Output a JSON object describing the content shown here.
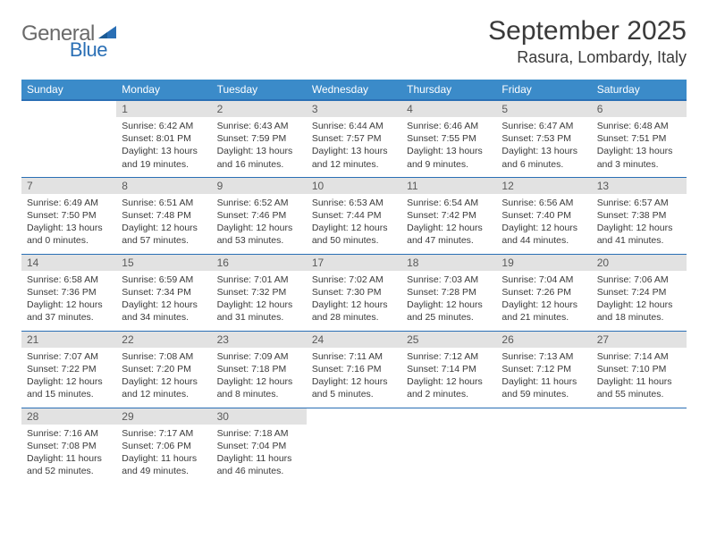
{
  "logo": {
    "part1": "General",
    "part2": "Blue"
  },
  "title": "September 2025",
  "location": "Rasura, Lombardy, Italy",
  "colors": {
    "header_bg": "#3b8bc9",
    "accent": "#2a6fb5",
    "daynum_bg": "#e2e2e2",
    "text": "#3a3a3a"
  },
  "weekdays": [
    "Sunday",
    "Monday",
    "Tuesday",
    "Wednesday",
    "Thursday",
    "Friday",
    "Saturday"
  ],
  "weeks": [
    [
      null,
      {
        "n": "1",
        "sr": "6:42 AM",
        "ss": "8:01 PM",
        "dl": "13 hours and 19 minutes."
      },
      {
        "n": "2",
        "sr": "6:43 AM",
        "ss": "7:59 PM",
        "dl": "13 hours and 16 minutes."
      },
      {
        "n": "3",
        "sr": "6:44 AM",
        "ss": "7:57 PM",
        "dl": "13 hours and 12 minutes."
      },
      {
        "n": "4",
        "sr": "6:46 AM",
        "ss": "7:55 PM",
        "dl": "13 hours and 9 minutes."
      },
      {
        "n": "5",
        "sr": "6:47 AM",
        "ss": "7:53 PM",
        "dl": "13 hours and 6 minutes."
      },
      {
        "n": "6",
        "sr": "6:48 AM",
        "ss": "7:51 PM",
        "dl": "13 hours and 3 minutes."
      }
    ],
    [
      {
        "n": "7",
        "sr": "6:49 AM",
        "ss": "7:50 PM",
        "dl": "13 hours and 0 minutes."
      },
      {
        "n": "8",
        "sr": "6:51 AM",
        "ss": "7:48 PM",
        "dl": "12 hours and 57 minutes."
      },
      {
        "n": "9",
        "sr": "6:52 AM",
        "ss": "7:46 PM",
        "dl": "12 hours and 53 minutes."
      },
      {
        "n": "10",
        "sr": "6:53 AM",
        "ss": "7:44 PM",
        "dl": "12 hours and 50 minutes."
      },
      {
        "n": "11",
        "sr": "6:54 AM",
        "ss": "7:42 PM",
        "dl": "12 hours and 47 minutes."
      },
      {
        "n": "12",
        "sr": "6:56 AM",
        "ss": "7:40 PM",
        "dl": "12 hours and 44 minutes."
      },
      {
        "n": "13",
        "sr": "6:57 AM",
        "ss": "7:38 PM",
        "dl": "12 hours and 41 minutes."
      }
    ],
    [
      {
        "n": "14",
        "sr": "6:58 AM",
        "ss": "7:36 PM",
        "dl": "12 hours and 37 minutes."
      },
      {
        "n": "15",
        "sr": "6:59 AM",
        "ss": "7:34 PM",
        "dl": "12 hours and 34 minutes."
      },
      {
        "n": "16",
        "sr": "7:01 AM",
        "ss": "7:32 PM",
        "dl": "12 hours and 31 minutes."
      },
      {
        "n": "17",
        "sr": "7:02 AM",
        "ss": "7:30 PM",
        "dl": "12 hours and 28 minutes."
      },
      {
        "n": "18",
        "sr": "7:03 AM",
        "ss": "7:28 PM",
        "dl": "12 hours and 25 minutes."
      },
      {
        "n": "19",
        "sr": "7:04 AM",
        "ss": "7:26 PM",
        "dl": "12 hours and 21 minutes."
      },
      {
        "n": "20",
        "sr": "7:06 AM",
        "ss": "7:24 PM",
        "dl": "12 hours and 18 minutes."
      }
    ],
    [
      {
        "n": "21",
        "sr": "7:07 AM",
        "ss": "7:22 PM",
        "dl": "12 hours and 15 minutes."
      },
      {
        "n": "22",
        "sr": "7:08 AM",
        "ss": "7:20 PM",
        "dl": "12 hours and 12 minutes."
      },
      {
        "n": "23",
        "sr": "7:09 AM",
        "ss": "7:18 PM",
        "dl": "12 hours and 8 minutes."
      },
      {
        "n": "24",
        "sr": "7:11 AM",
        "ss": "7:16 PM",
        "dl": "12 hours and 5 minutes."
      },
      {
        "n": "25",
        "sr": "7:12 AM",
        "ss": "7:14 PM",
        "dl": "12 hours and 2 minutes."
      },
      {
        "n": "26",
        "sr": "7:13 AM",
        "ss": "7:12 PM",
        "dl": "11 hours and 59 minutes."
      },
      {
        "n": "27",
        "sr": "7:14 AM",
        "ss": "7:10 PM",
        "dl": "11 hours and 55 minutes."
      }
    ],
    [
      {
        "n": "28",
        "sr": "7:16 AM",
        "ss": "7:08 PM",
        "dl": "11 hours and 52 minutes."
      },
      {
        "n": "29",
        "sr": "7:17 AM",
        "ss": "7:06 PM",
        "dl": "11 hours and 49 minutes."
      },
      {
        "n": "30",
        "sr": "7:18 AM",
        "ss": "7:04 PM",
        "dl": "11 hours and 46 minutes."
      },
      null,
      null,
      null,
      null
    ]
  ],
  "labels": {
    "sunrise": "Sunrise:",
    "sunset": "Sunset:",
    "daylight": "Daylight:"
  }
}
